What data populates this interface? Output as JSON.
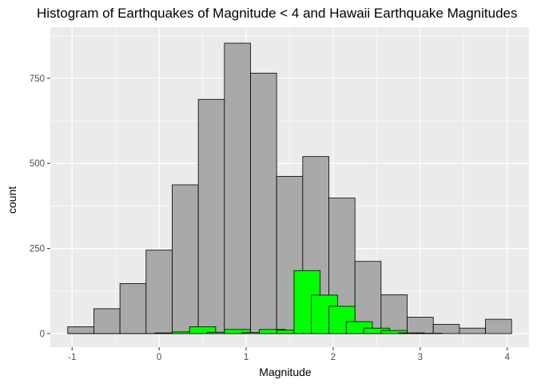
{
  "chart_data": {
    "type": "bar",
    "title": "Histogram of Earthquakes of Magnitude < 4 and Hawaii Earthquake Magnitudes",
    "xlabel": "Magnitude",
    "ylabel": "count",
    "xlim": [
      -1.25,
      4.25
    ],
    "ylim": [
      -40,
      900
    ],
    "x_ticks": [
      -1,
      0,
      1,
      2,
      3,
      4
    ],
    "y_ticks": [
      0,
      250,
      500,
      750
    ],
    "grid": true,
    "bin_width": 0.3,
    "colors": {
      "panel": "#ebebeb",
      "grid": "#ffffff",
      "all_fill": "#a9a9a9",
      "hawaii_fill": "#00ff00",
      "outline": "#000000"
    },
    "series": [
      {
        "x": [
          -0.9,
          -0.6,
          -0.3,
          0.0,
          0.3,
          0.6,
          0.9,
          1.2,
          1.5,
          1.8,
          2.1,
          2.4,
          2.7,
          3.0,
          3.3,
          3.6,
          3.9
        ],
        "values": [
          20,
          73,
          147,
          245,
          437,
          688,
          853,
          765,
          462,
          520,
          398,
          212,
          114,
          48,
          27,
          16,
          42
        ]
      },
      {
        "x": [
          -0.9,
          -0.6,
          -0.3,
          0.0,
          0.1,
          0.3,
          0.5,
          0.7,
          0.9,
          1.1,
          1.3,
          1.5,
          1.7,
          1.9,
          2.1,
          2.3,
          2.5,
          2.7,
          2.9,
          3.1
        ],
        "values": [
          0,
          0,
          0,
          0,
          2,
          5,
          20,
          4,
          12,
          3,
          12,
          10,
          185,
          113,
          80,
          35,
          16,
          9,
          2,
          1
        ]
      }
    ]
  }
}
